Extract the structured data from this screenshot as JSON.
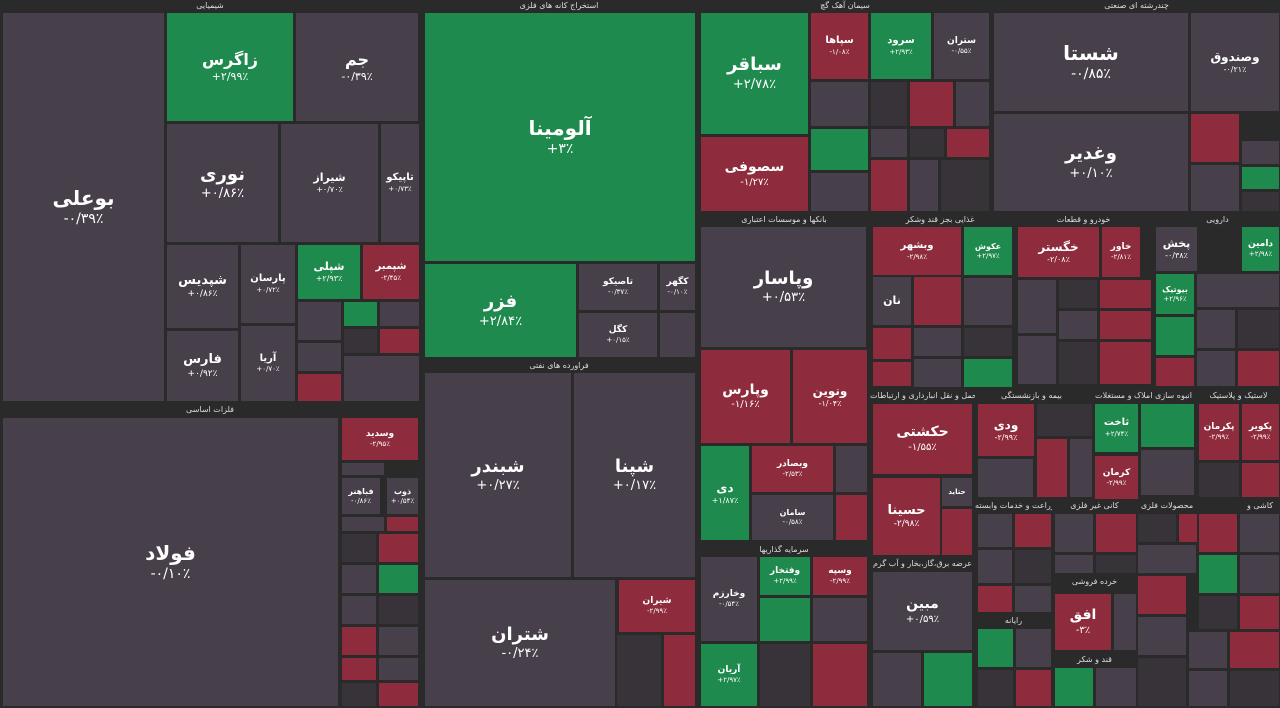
{
  "colors": {
    "negative": "#8e2c3e",
    "positive": "#1f8a4e",
    "neutral": "#47404a",
    "background": "#2a2a2a"
  },
  "sections": [
    {
      "id": "s1",
      "label": "شیمیایی"
    },
    {
      "id": "s2",
      "label": "استخراج کانه های فلزی"
    },
    {
      "id": "s3",
      "label": "سیمان آهک گچ"
    },
    {
      "id": "s4",
      "label": "چندرشته ای صنعتی"
    },
    {
      "id": "s5",
      "label": "فلزات اساسی"
    },
    {
      "id": "s6",
      "label": "فراورده های نفتی"
    },
    {
      "id": "s7",
      "label": "بانکها و موسسات اعتباری"
    },
    {
      "id": "s8",
      "label": "غذایی بجز قند وشکر"
    },
    {
      "id": "s9",
      "label": "خودرو و قطعات"
    },
    {
      "id": "s10",
      "label": "دارویی"
    },
    {
      "id": "s11",
      "label": "حمل و نقل انبارداری و ارتباطات"
    },
    {
      "id": "s12",
      "label": "بیمه و بازنشستگی"
    },
    {
      "id": "s13",
      "label": "انبوه سازی املاک و مستغلات"
    },
    {
      "id": "s14",
      "label": "لاستیک و پلاستیک"
    },
    {
      "id": "s15",
      "label": "سرمایه گذاریها"
    },
    {
      "id": "s16",
      "label": "عرضه برق،گاز،بخار و آب گرم"
    },
    {
      "id": "s17",
      "label": "زراعت و خدمات وابسته"
    },
    {
      "id": "s18",
      "label": "کانی غیر فلزی"
    },
    {
      "id": "s19",
      "label": "محصولات فلزی"
    },
    {
      "id": "s20",
      "label": "کاشی و"
    },
    {
      "id": "s21",
      "label": "رایانه"
    },
    {
      "id": "s22",
      "label": "خرده فروشی"
    },
    {
      "id": "s23",
      "label": "قند و شکر"
    }
  ],
  "tiles": [
    {
      "name": "بوعلی",
      "change": "-۰/۳۹٪",
      "color": "gray"
    },
    {
      "name": "زاگرس",
      "change": "+۲/۹۹٪",
      "color": "green"
    },
    {
      "name": "جم",
      "change": "-۰/۳۹٪",
      "color": "gray"
    },
    {
      "name": "نوری",
      "change": "+۰/۸۶٪",
      "color": "gray"
    },
    {
      "name": "شیراز",
      "change": "+۰/۷۰٪",
      "color": "gray"
    },
    {
      "name": "تاپیکو",
      "change": "+۰/۷۳٪",
      "color": "gray"
    },
    {
      "name": "شپدیس",
      "change": "+۰/۸۶٪",
      "color": "gray"
    },
    {
      "name": "پارسان",
      "change": "+۰/۷۲٪",
      "color": "gray"
    },
    {
      "name": "شپلی",
      "change": "+۲/۹۳٪",
      "color": "green"
    },
    {
      "name": "شپمبر",
      "change": "-۲/۴۵٪",
      "color": "red"
    },
    {
      "name": "فارس",
      "change": "+۰/۹۲٪",
      "color": "gray"
    },
    {
      "name": "آریا",
      "change": "+۰/۷۰٪",
      "color": "gray"
    },
    {
      "name": "آلومینا",
      "change": "+۳٪",
      "color": "green"
    },
    {
      "name": "فزر",
      "change": "+۲/۸۴٪",
      "color": "green"
    },
    {
      "name": "تاصیکو",
      "change": "-۰/۳۷٪",
      "color": "gray"
    },
    {
      "name": "کگهر",
      "change": "-۰/۱۰٪",
      "color": "gray"
    },
    {
      "name": "کگل",
      "change": "+۰/۱۵٪",
      "color": "gray"
    },
    {
      "name": "سباقر",
      "change": "+۲/۷۸٪",
      "color": "green"
    },
    {
      "name": "سپاها",
      "change": "-۱/۰۸٪",
      "color": "red"
    },
    {
      "name": "سرود",
      "change": "+۲/۹۳٪",
      "color": "green"
    },
    {
      "name": "ستران",
      "change": "-۰/۵۵٪",
      "color": "gray"
    },
    {
      "name": "سصوفی",
      "change": "-۱/۲۷٪",
      "color": "red"
    },
    {
      "name": "شستا",
      "change": "-۰/۸۵٪",
      "color": "gray"
    },
    {
      "name": "وصندوق",
      "change": "-۰/۲۱٪",
      "color": "gray"
    },
    {
      "name": "وغدیر",
      "change": "+۰/۱۰٪",
      "color": "gray"
    },
    {
      "name": "فولاد",
      "change": "-۰/۱۰٪",
      "color": "gray"
    },
    {
      "name": "شبندر",
      "change": "+۰/۲۷٪",
      "color": "gray"
    },
    {
      "name": "شپنا",
      "change": "+۰/۱۷٪",
      "color": "gray"
    },
    {
      "name": "شتران",
      "change": "-۰/۲۴٪",
      "color": "gray"
    },
    {
      "name": "وپاسار",
      "change": "+۰/۵۳٪",
      "color": "gray"
    },
    {
      "name": "وپارس",
      "change": "-۱/۱۶٪",
      "color": "red"
    },
    {
      "name": "ونوین",
      "change": "-۱/۰۴٪",
      "color": "red"
    },
    {
      "name": "دی",
      "change": "+۱/۸۷٪",
      "color": "green"
    },
    {
      "name": "وبصادر",
      "change": "-۲/۵۳٪",
      "color": "red"
    },
    {
      "name": "حکشتی",
      "change": "-۱/۵۵٪",
      "color": "red"
    },
    {
      "name": "حسینا",
      "change": "-۲/۹۸٪",
      "color": "red"
    },
    {
      "name": "مبین",
      "change": "+۰/۵۹٪",
      "color": "gray"
    },
    {
      "name": "افق",
      "change": "-۳٪",
      "color": "red"
    },
    {
      "name": "ودی",
      "change": "-۲/۹۹٪",
      "color": "red"
    },
    {
      "name": "ثاخت",
      "change": "+۲/۷۴٪",
      "color": "green"
    },
    {
      "name": "وبشهر",
      "change": "-۲/۹۸٪",
      "color": "red"
    },
    {
      "name": "نان",
      "change": "",
      "color": "gray"
    },
    {
      "name": "خگستر",
      "change": "-۲/۰۸٪",
      "color": "red"
    },
    {
      "name": "خاور",
      "change": "-۲/۸۱٪",
      "color": "red"
    },
    {
      "name": "پخش",
      "change": "-۰/۳۸٪",
      "color": "gray"
    },
    {
      "name": "دامین",
      "change": "+۲/۹۸٪",
      "color": "green"
    },
    {
      "name": "شیران",
      "change": "-۲/۹۹٪",
      "color": "red"
    },
    {
      "name": "وخارزم",
      "change": "-۰/۵۴٪",
      "color": "gray"
    },
    {
      "name": "آریان",
      "change": "+۲/۹۷٪",
      "color": "green"
    },
    {
      "name": "وسپه",
      "change": "-۲/۹۹٪",
      "color": "red"
    },
    {
      "name": "وفتخار",
      "change": "+۲/۹۹٪",
      "color": "green"
    },
    {
      "name": "پکرمان",
      "change": "-۲/۹۹٪",
      "color": "red"
    },
    {
      "name": "پکویر",
      "change": "-۲/۹۹٪",
      "color": "red"
    },
    {
      "name": "وسدید",
      "change": "-۲/۹۵٪",
      "color": "red"
    },
    {
      "name": "ذوب",
      "change": "+۰/۵۴٪",
      "color": "gray"
    },
    {
      "name": "فباهنر",
      "change": "-۰/۸۶٪",
      "color": "gray"
    },
    {
      "name": "عکوش",
      "change": "+۲/۹۷٪",
      "color": "green"
    },
    {
      "name": "کرمان",
      "change": "-۲/۹۹٪",
      "color": "red"
    },
    {
      "name": "بیوتیک",
      "change": "+۲/۹۶٪",
      "color": "green"
    },
    {
      "name": "سامان",
      "change": "-۰/۵۸٪",
      "color": "gray"
    },
    {
      "name": "حتاید",
      "change": "",
      "color": "gray"
    }
  ]
}
